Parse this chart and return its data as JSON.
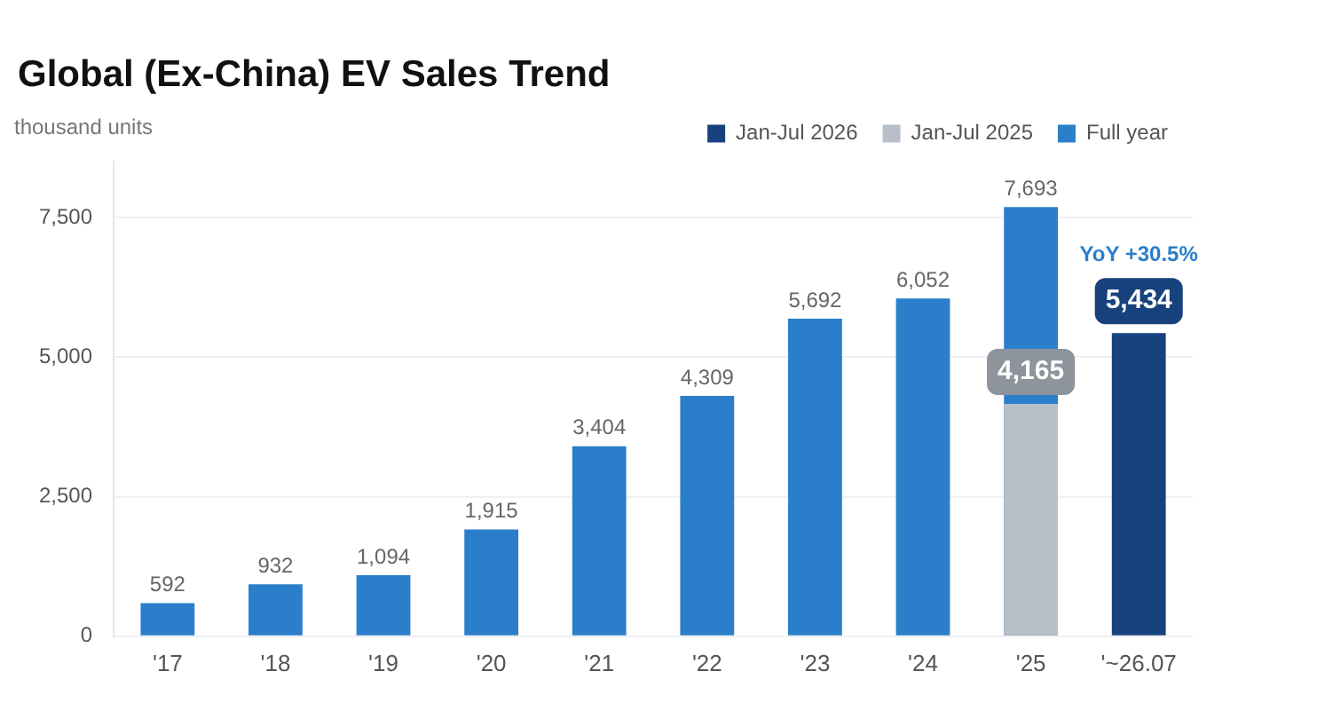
{
  "chart_data": {
    "type": "bar",
    "title": "Global (Ex-China) EV Sales Trend",
    "ylabel": "thousand units",
    "categories": [
      "'17",
      "'18",
      "'19",
      "'20",
      "'21",
      "'22",
      "'23",
      "'24",
      "'25",
      "'~26.07"
    ],
    "series": [
      {
        "name": "Jan-Jul 2026",
        "color": "#17427e",
        "values": [
          null,
          null,
          null,
          null,
          null,
          null,
          null,
          null,
          null,
          5434
        ],
        "value_labels": [
          null,
          null,
          null,
          null,
          null,
          null,
          null,
          null,
          null,
          "5,434"
        ]
      },
      {
        "name": "Jan-Jul 2025",
        "color": "#b9bfc8",
        "values": [
          null,
          null,
          null,
          null,
          null,
          null,
          null,
          null,
          4165,
          null
        ],
        "value_labels": [
          null,
          null,
          null,
          null,
          null,
          null,
          null,
          null,
          "4,165",
          null
        ]
      },
      {
        "name": "Full year",
        "color": "#2b7fca",
        "values": [
          592,
          932,
          1094,
          1915,
          3404,
          4309,
          5692,
          6052,
          7693,
          null
        ],
        "value_labels": [
          "592",
          "932",
          "1,094",
          "1,915",
          "3,404",
          "4,309",
          "5,692",
          "6,052",
          "7,693",
          null
        ]
      }
    ],
    "ylim": [
      0,
      8500
    ],
    "yticks": [
      {
        "value": 0,
        "label": "0"
      },
      {
        "value": 2500,
        "label": "2,500"
      },
      {
        "value": 5000,
        "label": "5,000"
      },
      {
        "value": 7500,
        "label": "7,500"
      }
    ],
    "grid": "y",
    "legend": "top right",
    "annotations": [
      "YoY +30.5%"
    ]
  }
}
